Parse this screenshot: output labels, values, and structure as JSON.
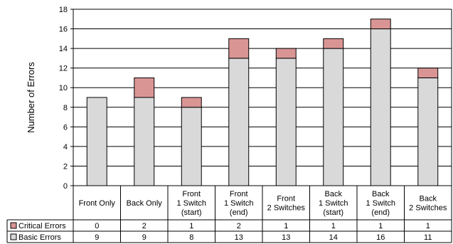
{
  "chart_data": {
    "type": "bar",
    "stacked": true,
    "ylabel": "Number of Errors",
    "ylim": [
      0,
      18
    ],
    "yticks": [
      0,
      2,
      4,
      6,
      8,
      10,
      12,
      14,
      16,
      18
    ],
    "grid": "horizontal",
    "categories": [
      [
        "Front Only"
      ],
      [
        "Back Only"
      ],
      [
        "Front",
        "1 Switch",
        "(start)"
      ],
      [
        "Front",
        "1 Switch",
        "(end)"
      ],
      [
        "Front",
        "2 Switches"
      ],
      [
        "Back",
        "1 Switch",
        "(start)"
      ],
      [
        "Back",
        "1 Switch",
        "(end)"
      ],
      [
        "Back",
        "2 Switches"
      ]
    ],
    "series": [
      {
        "name": "Basic Errors",
        "values": [
          9,
          9,
          8,
          13,
          13,
          14,
          16,
          11
        ],
        "color": "#d9d9d9"
      },
      {
        "name": "Critical Errors",
        "values": [
          0,
          2,
          1,
          2,
          1,
          1,
          1,
          1
        ],
        "color": "#d99594"
      }
    ],
    "table_rows": [
      {
        "label": "Critical Errors",
        "series": 1,
        "values": [
          "0",
          "2",
          "1",
          "2",
          "1",
          "1",
          "1",
          "1"
        ]
      },
      {
        "label": "Basic Errors",
        "series": 0,
        "values": [
          "9",
          "9",
          "8",
          "13",
          "13",
          "14",
          "16",
          "11"
        ]
      }
    ]
  }
}
